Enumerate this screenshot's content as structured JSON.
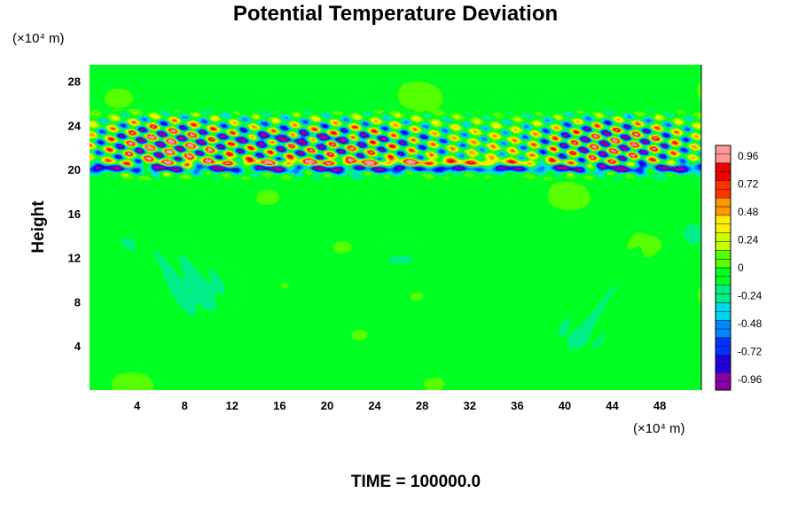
{
  "chart_data": {
    "type": "heatmap",
    "title": "Potential Temperature Deviation",
    "ylabel": "Height",
    "xlabel": "",
    "x_unit": "(×10⁴ m)",
    "y_unit": "(×10⁴ m)",
    "footer": "TIME = 100000.0",
    "xlim": [
      0,
      51.5
    ],
    "ylim": [
      0,
      29.5
    ],
    "x_ticks": [
      4,
      8,
      12,
      16,
      20,
      24,
      28,
      32,
      36,
      40,
      44,
      48
    ],
    "y_ticks": [
      4,
      8,
      12,
      16,
      20,
      24,
      28
    ],
    "colorbar": {
      "range": [
        -1.05,
        1.05
      ],
      "tick_values": [
        0.96,
        0.72,
        0.48,
        0.24,
        0,
        -0.24,
        -0.48,
        -0.72,
        -0.96
      ],
      "tick_labels": [
        "0.96",
        "0.72",
        "0.48",
        "0.24",
        "0",
        "-0.24",
        "-0.48",
        "-0.72",
        "-0.96"
      ],
      "colors": [
        "#8800aa",
        "#2200dd",
        "#0033ff",
        "#0088ff",
        "#00d5ee",
        "#00ee88",
        "#00ff22",
        "#55ff00",
        "#c8ff00",
        "#ffee00",
        "#ff9900",
        "#ff3300",
        "#ee0000",
        "#ff9999"
      ]
    },
    "field_description_values": {
      "background_level": -0.06,
      "band_low": {
        "y": 20.1,
        "value": -0.95
      },
      "band_high": {
        "y": 20.6,
        "value": 0.95
      },
      "wave_layer_y_range": [
        19,
        25.5
      ]
    }
  }
}
